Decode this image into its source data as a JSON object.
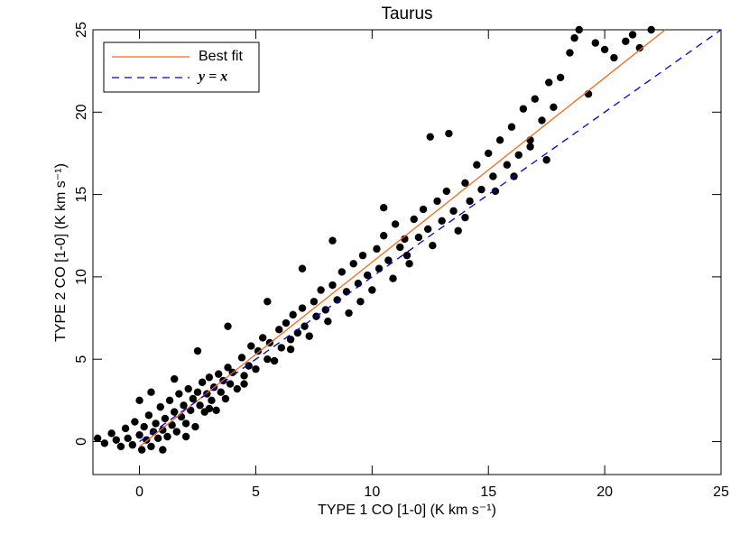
{
  "chart_data": {
    "type": "scatter",
    "title": "Taurus",
    "xlabel": "TYPE 1 CO [1-0] (K km s⁻¹)",
    "ylabel": "TYPE 2 CO [1-0] (K km s⁻¹)",
    "xlim": [
      -2,
      25
    ],
    "ylim": [
      -2,
      25
    ],
    "xticks": [
      0,
      5,
      10,
      15,
      20,
      25
    ],
    "yticks": [
      0,
      5,
      10,
      15,
      20,
      25
    ],
    "legend": "upper left",
    "points": {
      "color": "#000000",
      "x": [
        -1.8,
        -1.5,
        -1.2,
        -1,
        -0.8,
        -0.6,
        -0.5,
        -0.3,
        -0.2,
        0,
        0.1,
        0.2,
        0.3,
        0.4,
        0.5,
        0.6,
        0.7,
        0.8,
        0.9,
        1,
        1.1,
        1.2,
        1.3,
        1.4,
        1.5,
        1.6,
        1.7,
        1.8,
        1.9,
        2,
        2.1,
        2.2,
        2.3,
        2.4,
        2.5,
        2.6,
        2.7,
        2.8,
        2.9,
        3,
        3.1,
        3.2,
        3.3,
        3.4,
        3.5,
        3.6,
        3.7,
        3.8,
        3.9,
        4,
        4.2,
        4.4,
        4.5,
        4.7,
        4.8,
        5,
        5.1,
        5.3,
        5.5,
        5.6,
        5.8,
        6,
        6.1,
        6.3,
        6.5,
        6.6,
        6.8,
        7,
        7.1,
        7.3,
        7.5,
        7.6,
        7.8,
        8,
        8.1,
        8.3,
        8.5,
        8.7,
        8.9,
        9,
        9.2,
        9.4,
        9.6,
        9.8,
        10,
        10.2,
        10.3,
        10.5,
        10.7,
        10.9,
        11,
        11.2,
        11.4,
        11.6,
        11.8,
        12,
        12.2,
        12.4,
        12.6,
        12.8,
        13,
        13.2,
        13.5,
        13.7,
        14,
        14.2,
        14.5,
        14.7,
        15,
        15.2,
        15.5,
        15.8,
        16,
        16.3,
        16.5,
        16.8,
        17,
        17.3,
        17.6,
        17.8,
        18.1,
        18.5,
        18.7,
        18.9,
        19.3,
        19.6,
        20,
        20.4,
        20.9,
        21.2,
        21.5,
        22,
        12.5,
        13.3,
        10.5,
        8.3,
        7,
        5.5,
        3.8,
        2.5,
        1.5,
        0.5,
        0,
        17.5,
        15.3,
        14,
        11.5,
        9.5,
        6.5,
        4.5,
        3,
        2,
        1,
        16.1,
        16.8
      ],
      "values": [
        0.2,
        -0.1,
        0.5,
        0.1,
        -0.3,
        0.8,
        0.2,
        -0.2,
        1.2,
        0.4,
        -0.5,
        0.9,
        0.1,
        1.6,
        -0.3,
        0.6,
        1.1,
        0.2,
        2.1,
        0.7,
        1.4,
        0.3,
        2.5,
        1,
        1.8,
        0.6,
        2.9,
        1.5,
        2.2,
        1.1,
        3.2,
        1.9,
        2.6,
        0.9,
        3,
        2.2,
        3.6,
        1.8,
        2.9,
        3.9,
        2.5,
        3.3,
        1.9,
        4.1,
        3,
        3.7,
        2.6,
        4.5,
        3.5,
        4.2,
        3.2,
        5.1,
        4,
        4.6,
        5.8,
        4.4,
        5.5,
        6.3,
        5,
        6,
        4.9,
        6.8,
        5.7,
        7.2,
        6.2,
        7.7,
        6.6,
        8.1,
        7,
        6.4,
        8.5,
        7.6,
        9.2,
        8,
        7.3,
        9.5,
        8.6,
        10.3,
        9.1,
        7.8,
        10.8,
        9.6,
        11.3,
        10.1,
        9.2,
        11.7,
        10.5,
        12.5,
        11,
        9.9,
        13.2,
        11.8,
        12.3,
        10.8,
        13.5,
        12.4,
        14.1,
        12.9,
        11.9,
        14.6,
        13.4,
        15.2,
        14,
        12.8,
        15.7,
        14.6,
        16.8,
        15.3,
        17.5,
        16.1,
        18.3,
        16.8,
        19.1,
        17.4,
        20.2,
        18.3,
        20.8,
        19.5,
        21.8,
        20.3,
        22.1,
        23.6,
        24.5,
        25,
        21.1,
        24.2,
        23.8,
        23.3,
        24.3,
        24.7,
        23.9,
        25,
        18.5,
        18.7,
        14.2,
        12.2,
        10.5,
        8.5,
        7,
        5.5,
        3.8,
        3,
        2.5,
        17.1,
        15.2,
        13.6,
        11.3,
        8.5,
        5.6,
        3.5,
        2,
        0.3,
        -0.5,
        16.1,
        17.9
      ]
    },
    "series": [
      {
        "name": "Best fit",
        "color": "#f26a1b",
        "style": "solid",
        "x": [
          0,
          22.6
        ],
        "values": [
          -0.3,
          25
        ]
      },
      {
        "name": "y = x",
        "color": "#0000dd",
        "style": "dashed",
        "x": [
          0,
          25
        ],
        "values": [
          0,
          25
        ]
      }
    ]
  }
}
